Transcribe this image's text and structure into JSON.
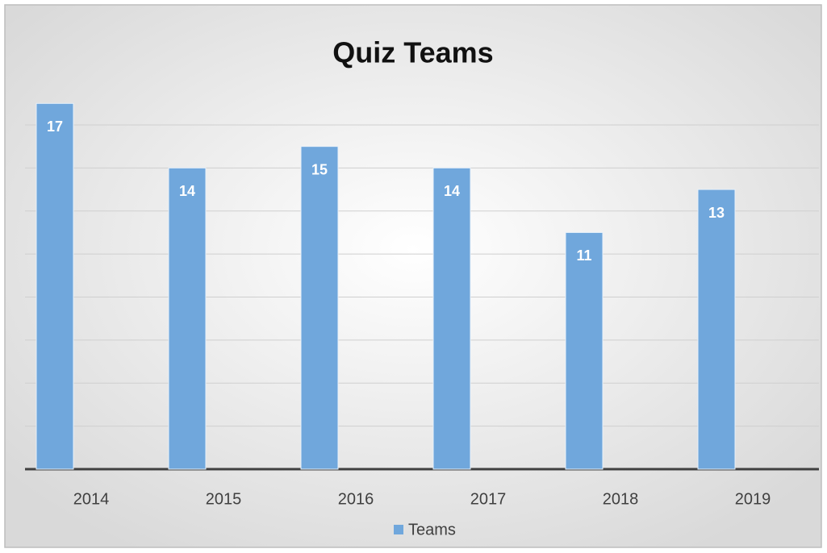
{
  "chart_data": {
    "type": "bar",
    "title": "Quiz Teams",
    "categories": [
      "2014",
      "2015",
      "2016",
      "2017",
      "2018",
      "2019"
    ],
    "series": [
      {
        "name": "Teams",
        "color": "#70a7dc",
        "values": [
          17,
          14,
          15,
          14,
          11,
          13
        ]
      }
    ],
    "ylim": [
      0,
      18
    ],
    "yticks": [
      0,
      2,
      4,
      6,
      8,
      10,
      12,
      14,
      16
    ],
    "grid": true,
    "legend": "bottom"
  }
}
